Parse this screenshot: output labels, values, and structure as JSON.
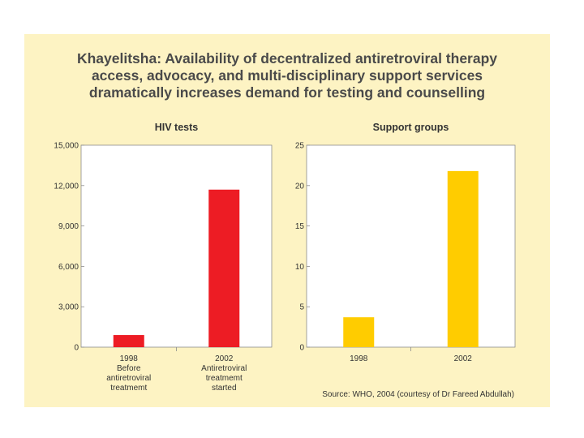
{
  "title_lines": [
    "Khayelitsha: Availability of decentralized antiretroviral therapy",
    "access, advocacy, and multi-disciplinary support services",
    "dramatically increases demand for testing and counselling"
  ],
  "source": "Source:  WHO, 2004 (courtesy of Dr Fareed Abdullah)",
  "colors": {
    "background": "#fdf3c3",
    "hiv_bar": "#ed1c24",
    "support_bar": "#ffcc00"
  },
  "chart_data": [
    {
      "type": "bar",
      "title": "HIV tests",
      "categories": [
        [
          "1998",
          "Before",
          "antiretroviral",
          "treatmemt"
        ],
        [
          "2002",
          "Antiretroviral",
          "treatmemt",
          "started"
        ]
      ],
      "values": [
        900,
        11700
      ],
      "ylim": [
        0,
        15000
      ],
      "yticks": [
        0,
        3000,
        6000,
        9000,
        12000,
        15000
      ],
      "ytick_labels": [
        "0",
        "3,000",
        "6,000",
        "9,000",
        "12,000",
        "15,000"
      ],
      "grid": false
    },
    {
      "type": "bar",
      "title": "Support groups",
      "categories": [
        [
          "1998"
        ],
        [
          "2002"
        ]
      ],
      "values": [
        3.7,
        21.8
      ],
      "ylim": [
        0,
        25
      ],
      "yticks": [
        0,
        5,
        10,
        15,
        20,
        25
      ],
      "ytick_labels": [
        "0",
        "5",
        "10",
        "15",
        "20",
        "25"
      ],
      "grid": false
    }
  ]
}
